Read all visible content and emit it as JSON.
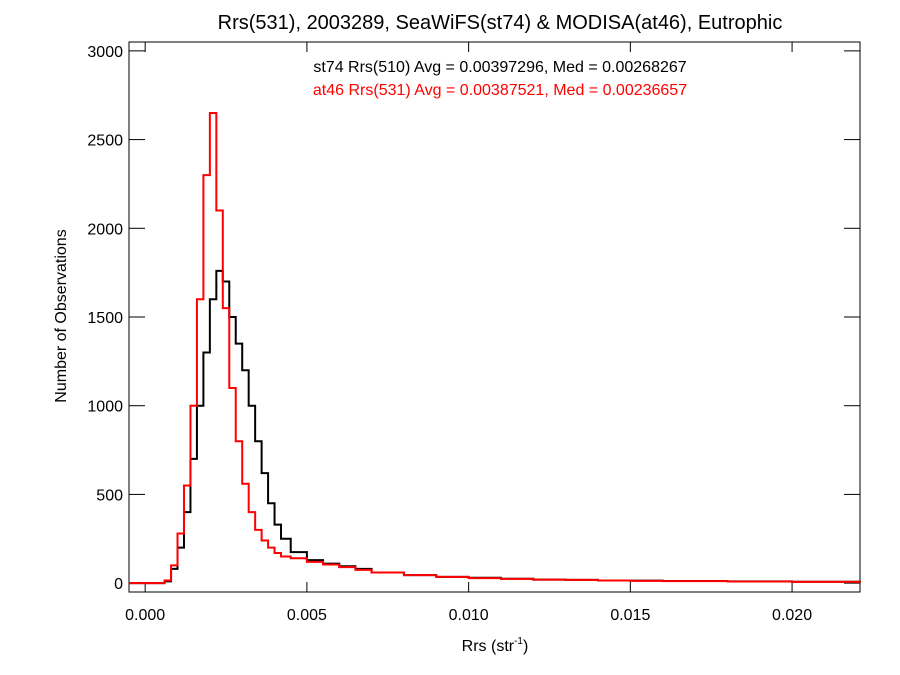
{
  "chart_data": {
    "type": "line",
    "title": "Rrs(531), 2003289, SeaWiFS(st74) & MODISA(at46), Eutrophic",
    "xlabel": "Rrs (str",
    "xlabel_superscript": "-1",
    "xlabel_suffix": ")",
    "ylabel": "Number of Observations",
    "xlim": [
      -0.0005,
      0.0221
    ],
    "ylim": [
      -50,
      3050
    ],
    "x_ticks": [
      0.0,
      0.005,
      0.01,
      0.015,
      0.02
    ],
    "x_tick_labels": [
      "0.000",
      "0.005",
      "0.010",
      "0.015",
      "0.020"
    ],
    "y_ticks": [
      0,
      500,
      1000,
      1500,
      2000,
      2500,
      3000
    ],
    "y_tick_labels": [
      "0",
      "500",
      "1000",
      "1500",
      "2000",
      "2500",
      "3000"
    ],
    "step_style": "histogram",
    "series": [
      {
        "name": "st74 Rrs(510)",
        "color": "#000000",
        "annotation": "st74 Rrs(510) Avg = 0.00397296, Med = 0.00268267",
        "x": [
          -0.0005,
          0.0006,
          0.0008,
          0.001,
          0.0012,
          0.0014,
          0.0016,
          0.0018,
          0.002,
          0.0022,
          0.0024,
          0.0026,
          0.0028,
          0.003,
          0.0032,
          0.0034,
          0.0036,
          0.0038,
          0.004,
          0.0042,
          0.0045,
          0.005,
          0.0055,
          0.006,
          0.0065,
          0.007,
          0.008,
          0.009,
          0.01,
          0.011,
          0.012,
          0.013,
          0.014,
          0.015,
          0.016,
          0.018,
          0.02,
          0.0221
        ],
        "y": [
          0,
          10,
          80,
          200,
          400,
          700,
          1000,
          1300,
          1600,
          1760,
          1700,
          1500,
          1350,
          1200,
          1000,
          800,
          620,
          450,
          330,
          250,
          175,
          130,
          110,
          95,
          80,
          60,
          45,
          35,
          30,
          25,
          20,
          18,
          15,
          14,
          12,
          10,
          8,
          5
        ]
      },
      {
        "name": "at46 Rrs(531)",
        "color": "#ff0000",
        "annotation": "at46 Rrs(531) Avg = 0.00387521, Med = 0.00236657",
        "x": [
          -0.0005,
          0.0006,
          0.0008,
          0.001,
          0.0012,
          0.0014,
          0.0016,
          0.0018,
          0.002,
          0.0022,
          0.0024,
          0.0026,
          0.0028,
          0.003,
          0.0032,
          0.0034,
          0.0036,
          0.0038,
          0.004,
          0.0042,
          0.0045,
          0.005,
          0.0055,
          0.006,
          0.0065,
          0.007,
          0.008,
          0.009,
          0.01,
          0.011,
          0.012,
          0.013,
          0.014,
          0.015,
          0.016,
          0.018,
          0.02,
          0.0221
        ],
        "y": [
          0,
          15,
          100,
          280,
          550,
          1000,
          1600,
          2300,
          2650,
          2100,
          1550,
          1100,
          800,
          560,
          400,
          300,
          240,
          200,
          170,
          150,
          140,
          120,
          105,
          90,
          75,
          60,
          45,
          35,
          28,
          24,
          20,
          18,
          15,
          13,
          11,
          9,
          7,
          5
        ]
      }
    ],
    "grid": false,
    "legend": "top-center annotations"
  }
}
